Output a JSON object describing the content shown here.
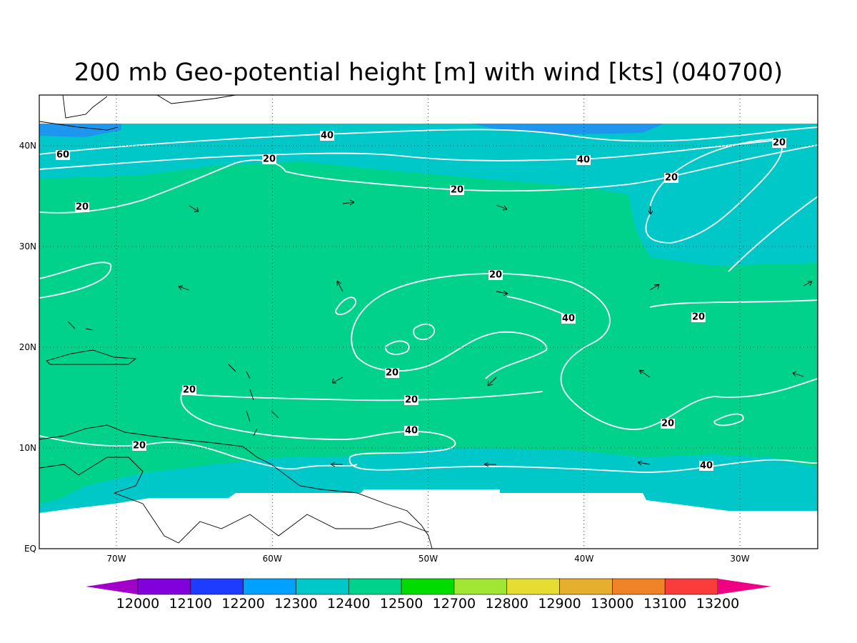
{
  "title": "200 mb Geo-potential height [m] with wind [kts] (040700)",
  "latitude_ticks": [
    {
      "value": 0,
      "label": "EQ"
    },
    {
      "value": 10,
      "label": "10N"
    },
    {
      "value": 20,
      "label": "20N"
    },
    {
      "value": 30,
      "label": "30N"
    },
    {
      "value": 40,
      "label": "40N"
    }
  ],
  "longitude_ticks": [
    {
      "value": -70,
      "label": "70W"
    },
    {
      "value": -60,
      "label": "60W"
    },
    {
      "value": -50,
      "label": "50W"
    },
    {
      "value": -40,
      "label": "40W"
    },
    {
      "value": -30,
      "label": "30W"
    }
  ],
  "contour_labels": [
    60,
    40,
    20,
    40,
    20,
    20,
    20,
    20,
    20,
    40,
    20,
    20,
    20,
    20,
    40,
    20,
    20,
    40
  ],
  "colorbar": {
    "levels": [
      12000,
      12100,
      12200,
      12300,
      12400,
      12500,
      12700,
      12800,
      12900,
      13000,
      13100,
      13200
    ],
    "colors": [
      "#a000c8",
      "#8200dc",
      "#1e3cff",
      "#00a0ff",
      "#00c8c8",
      "#00d28c",
      "#00dc00",
      "#a0e632",
      "#e6dc32",
      "#e6af2d",
      "#f08228",
      "#fa3c3c",
      "#f00082"
    ]
  }
}
